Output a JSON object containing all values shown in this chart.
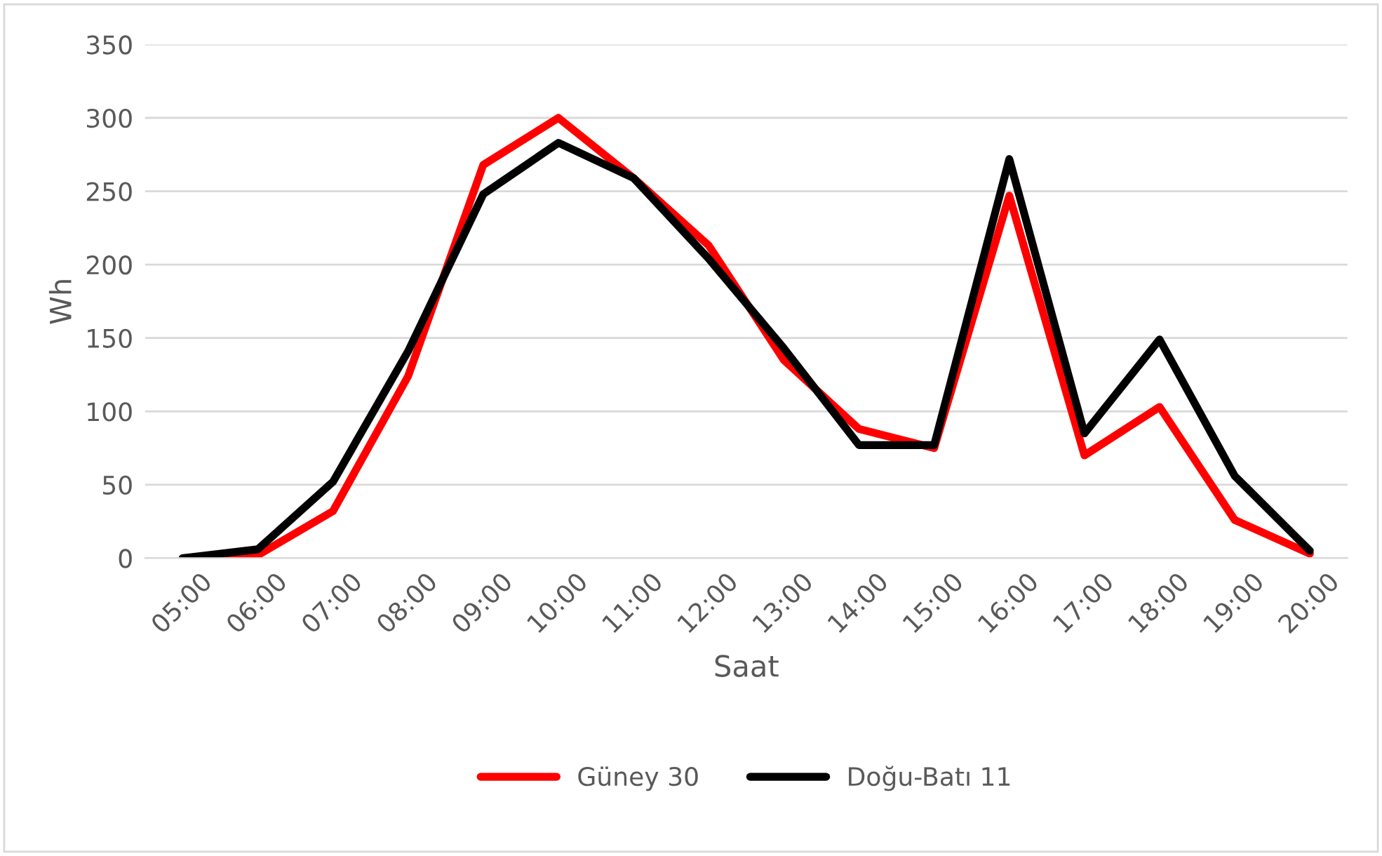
{
  "chart_data": {
    "type": "line",
    "xlabel": "Saat",
    "ylabel": "Wh",
    "categories": [
      "05:00",
      "06:00",
      "07:00",
      "08:00",
      "09:00",
      "10:00",
      "11:00",
      "12:00",
      "13:00",
      "14:00",
      "15:00",
      "16:00",
      "17:00",
      "18:00",
      "19:00",
      "20:00"
    ],
    "series": [
      {
        "name": "Güney 30",
        "color": "#ff0000",
        "values": [
          0,
          2,
          32,
          124,
          268,
          300,
          259,
          213,
          135,
          88,
          75,
          247,
          70,
          103,
          26,
          3
        ]
      },
      {
        "name": "Doğu-Batı 11",
        "color": "#000000",
        "values": [
          0,
          6,
          52,
          141,
          248,
          283,
          259,
          204,
          143,
          77,
          77,
          272,
          85,
          149,
          56,
          5
        ]
      }
    ],
    "ylim": [
      0,
      350
    ],
    "yticks": [
      0,
      50,
      100,
      150,
      200,
      250,
      300,
      350
    ],
    "grid": "y",
    "legend": "bottom",
    "marker": "none",
    "line_style": "solid"
  }
}
